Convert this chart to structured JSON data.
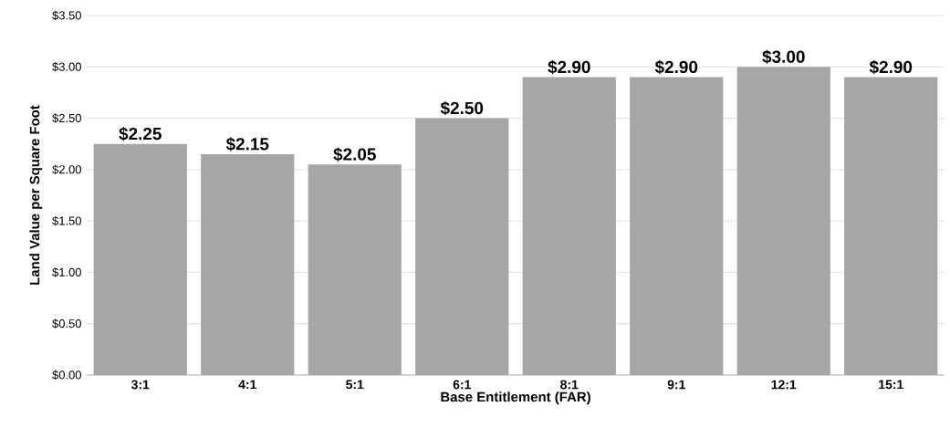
{
  "chart_data": {
    "type": "bar",
    "xlabel": "Base Entitlement (FAR)",
    "ylabel": "Land Value per Square Foot",
    "categories": [
      "3:1",
      "4:1",
      "5:1",
      "6:1",
      "8:1",
      "9:1",
      "12:1",
      "15:1"
    ],
    "values": [
      2.25,
      2.15,
      2.05,
      2.5,
      2.9,
      2.9,
      3.0,
      2.9
    ],
    "value_labels": [
      "$2.25",
      "$2.15",
      "$2.05",
      "$2.50",
      "$2.90",
      "$2.90",
      "$3.00",
      "$2.90"
    ],
    "color": "#a6a6a6",
    "ylim": [
      0,
      3.5
    ],
    "yticks": [
      {
        "value": 0,
        "label": "$0.00"
      },
      {
        "value": 0.5,
        "label": "$0.50"
      },
      {
        "value": 1,
        "label": "$1.00"
      },
      {
        "value": 1.5,
        "label": "$1.50"
      },
      {
        "value": 2,
        "label": "$2.00"
      },
      {
        "value": 2.5,
        "label": "$2.50"
      },
      {
        "value": 3,
        "label": "$3.00"
      },
      {
        "value": 3.5,
        "label": "$3.50"
      }
    ],
    "grid": "y"
  }
}
